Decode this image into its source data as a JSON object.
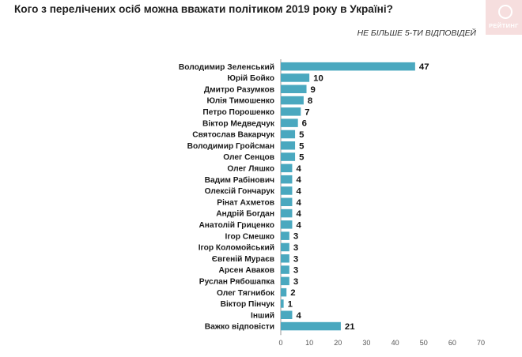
{
  "header": {
    "title": "Кого з перелічених осіб можна вважати політиком 2019 року в Україні?",
    "subtitle": "НЕ БІЛЬШЕ 5-ТИ ВІДПОВІДЕЙ",
    "logo_text": "РЕЙТИНГ"
  },
  "colors": {
    "bar": "#4aa8bf",
    "axis": "#9a9a9a",
    "text": "#1a1a1a"
  },
  "chart_data": {
    "type": "bar",
    "orientation": "horizontal",
    "title": "Кого з перелічених осіб можна вважати політиком 2019 року в Україні?",
    "subtitle": "НЕ БІЛЬШЕ 5-ТИ ВІДПОВІДЕЙ",
    "categories": [
      "Володимир Зеленський",
      "Юрій Бойко",
      "Дмитро Разумков",
      "Юлія Тимошенко",
      "Петро Порошенко",
      "Віктор Медведчук",
      "Святослав Вакарчук",
      "Володимир Гройсман",
      "Олег Сенцов",
      "Олег Ляшко",
      "Вадим Рабінович",
      "Олексій Гончарук",
      "Рінат Ахметов",
      "Андрій Богдан",
      "Анатолій Гриценко",
      "Ігор Смешко",
      "Ігор Коломойський",
      "Євгеній Мураєв",
      "Арсен Аваков",
      "Руслан Рябошапка",
      "Олег Тягнибок",
      "Віктор Пінчук",
      "Інший",
      "Важко відповісти"
    ],
    "values": [
      47,
      10,
      9,
      8,
      7,
      6,
      5,
      5,
      5,
      4,
      4,
      4,
      4,
      4,
      4,
      3,
      3,
      3,
      3,
      3,
      2,
      1,
      4,
      21
    ],
    "xlim": [
      0,
      70
    ],
    "xticks": [
      0,
      10,
      20,
      30,
      40,
      50,
      60,
      70
    ],
    "xlabel": "",
    "ylabel": "",
    "grid": false,
    "legend": "none"
  }
}
